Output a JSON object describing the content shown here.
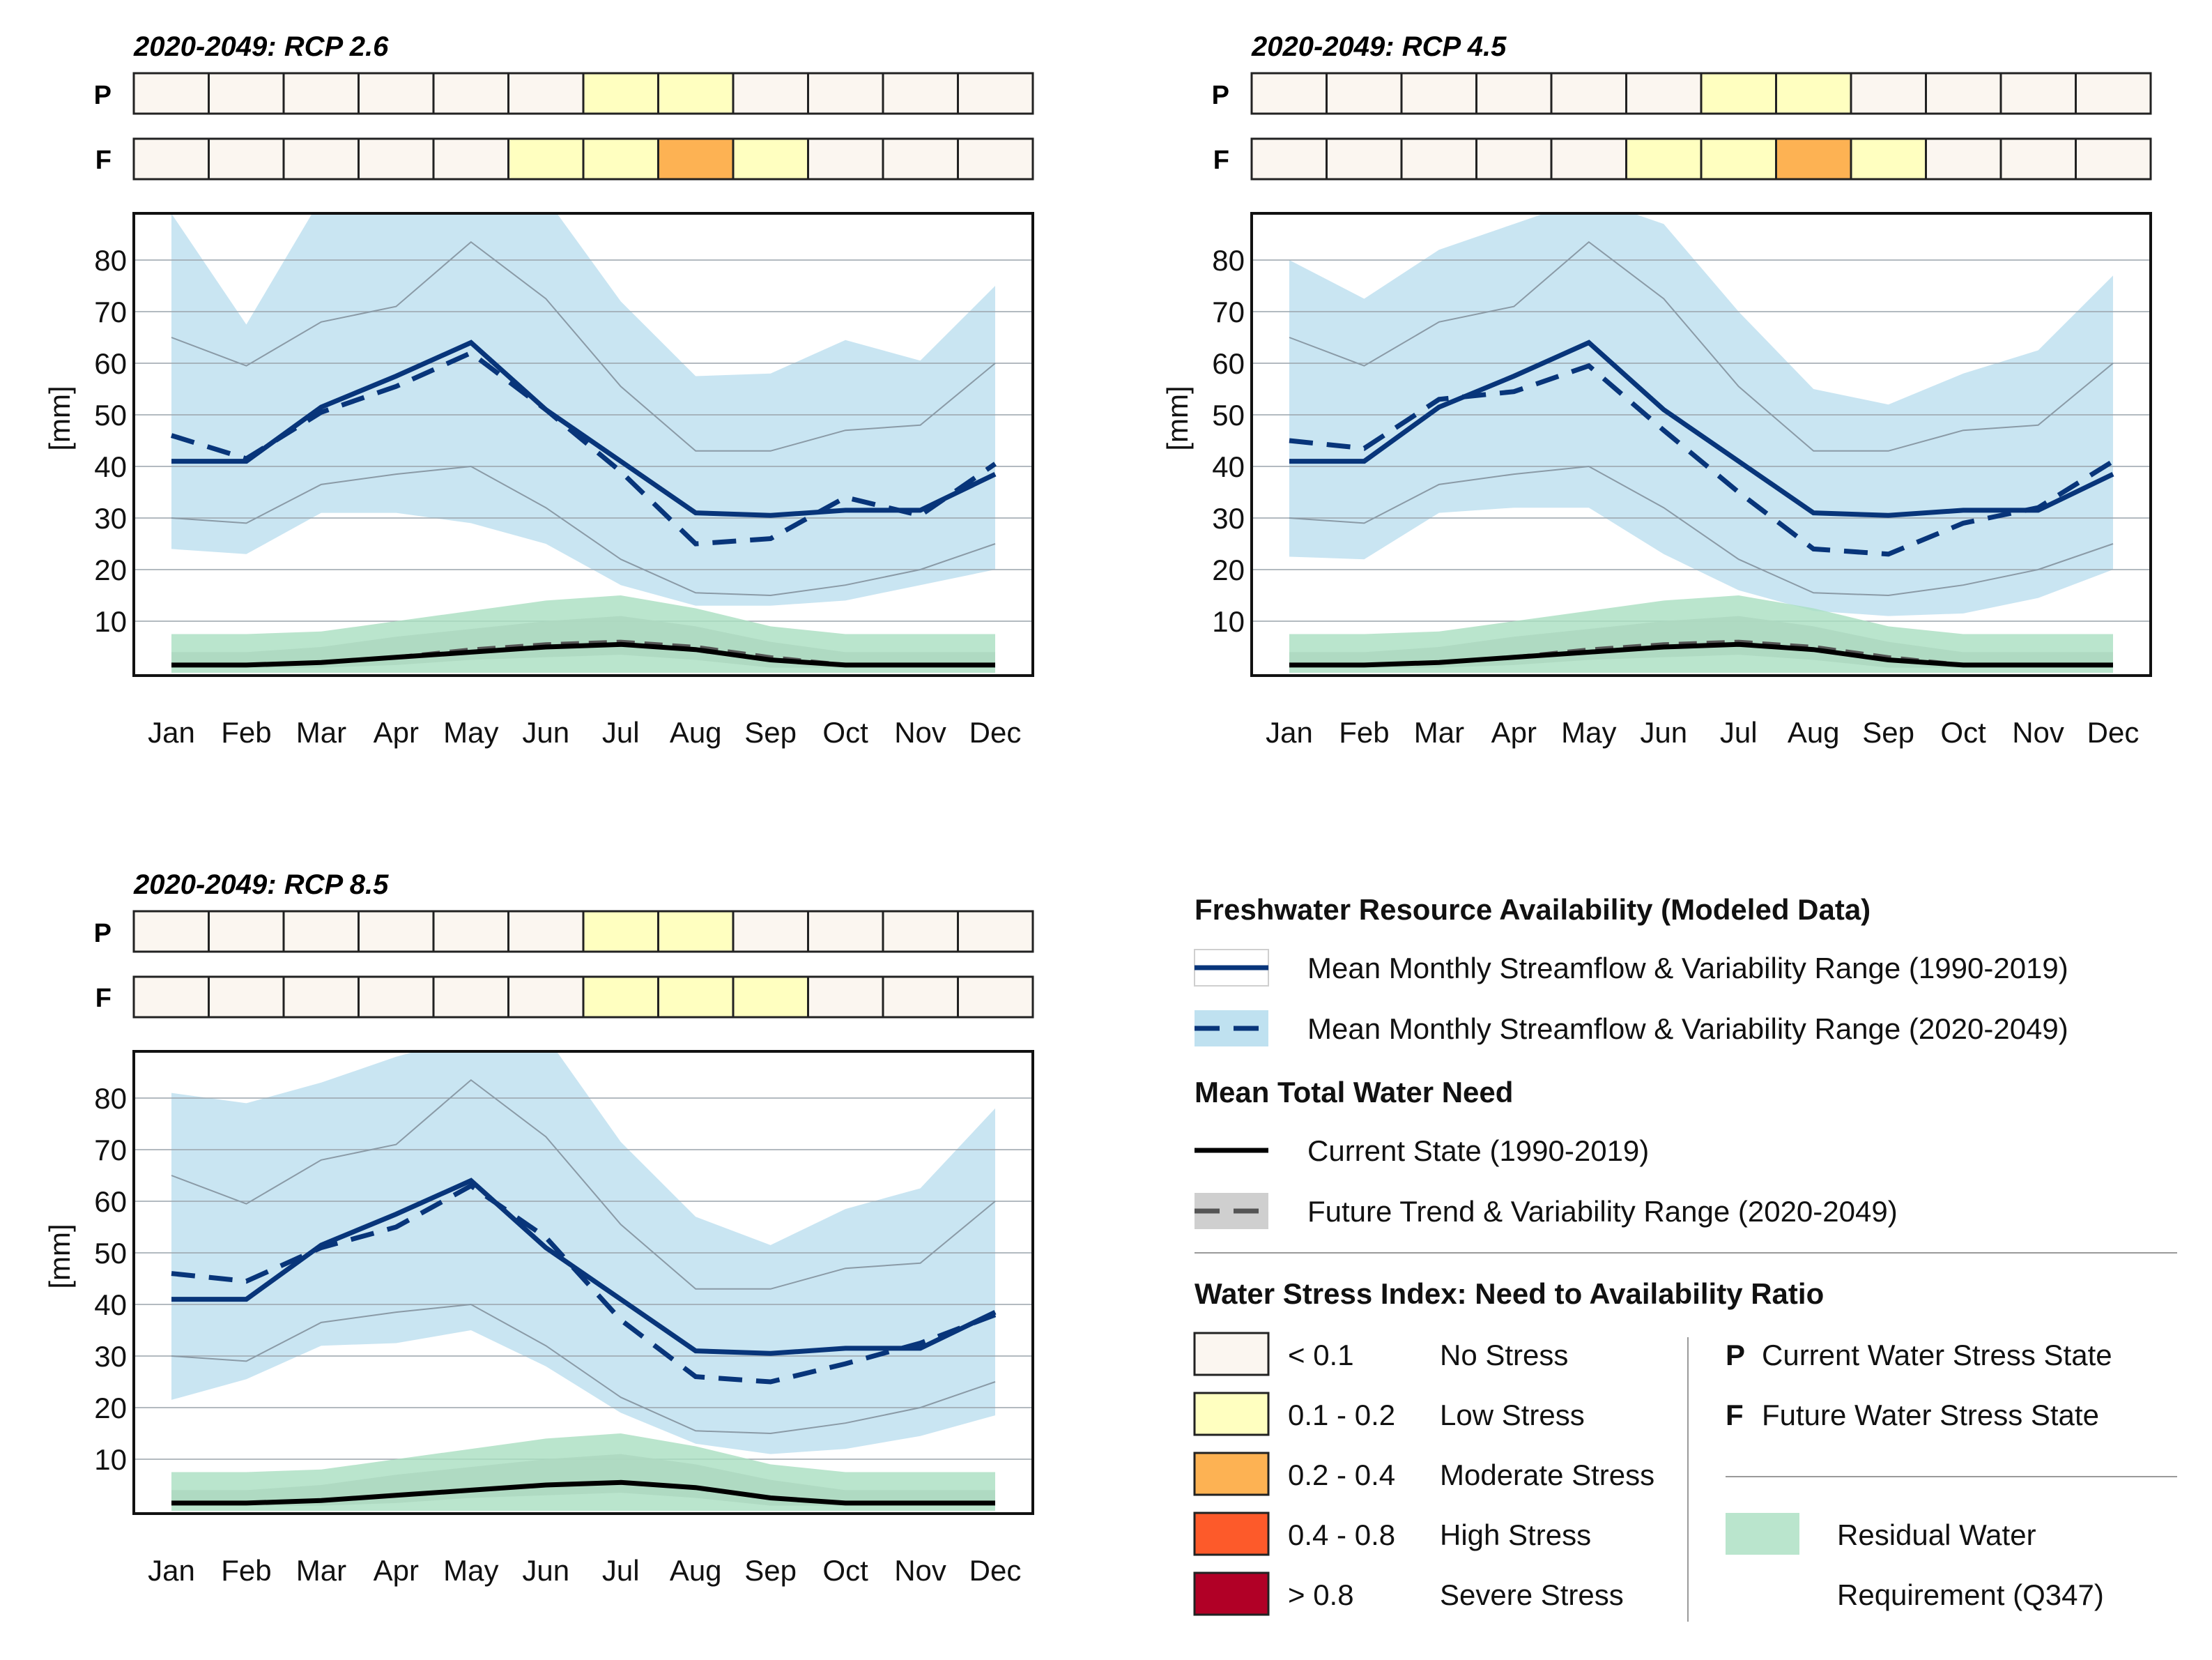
{
  "months": [
    "Jan",
    "Feb",
    "Mar",
    "Apr",
    "May",
    "Jun",
    "Jul",
    "Aug",
    "Sep",
    "Oct",
    "Nov",
    "Dec"
  ],
  "stress_colors": {
    "none": "#fbf6f0",
    "low": "#ffffc0",
    "moderate": "#fdb253",
    "high": "#fd5a2a",
    "severe": "#b10026"
  },
  "colors": {
    "streamflow": "#08357a",
    "streamflow_band": "#bfe1f0",
    "need_band": "#bdbdbd",
    "residual": "#a9dfc0"
  },
  "chart_data": [
    {
      "type": "line",
      "title": "2020-2049: RCP 2.6",
      "ylabel": "[mm]",
      "ylim": [
        0,
        90
      ],
      "yticks": [
        10,
        20,
        30,
        40,
        50,
        60,
        70,
        80
      ],
      "stress_rows": {
        "P": [
          "none",
          "none",
          "none",
          "none",
          "none",
          "none",
          "low",
          "low",
          "none",
          "none",
          "none",
          "none"
        ],
        "F": [
          "none",
          "none",
          "none",
          "none",
          "none",
          "low",
          "low",
          "moderate",
          "low",
          "none",
          "none",
          "none"
        ]
      },
      "series": [
        {
          "name": "Mean Monthly Streamflow (1990-2019)",
          "values": [
            41,
            41,
            51.5,
            57.5,
            64,
            51,
            41,
            31,
            30.5,
            31.5,
            31.5,
            38.5
          ]
        },
        {
          "name": "Mean Monthly Streamflow (2020-2049)",
          "values": [
            46,
            41.5,
            50.5,
            55.5,
            62,
            51,
            39,
            25,
            26,
            34,
            30.5,
            40.5
          ]
        },
        {
          "name": "Current State (1990-2019)",
          "values": [
            1.5,
            1.5,
            2,
            3,
            4,
            5,
            5.5,
            4.5,
            2.5,
            1.5,
            1.5,
            1.5
          ]
        },
        {
          "name": "Future Trend (2020-2049)",
          "values": [
            1.5,
            1.5,
            2,
            3,
            4.5,
            5.5,
            6,
            5,
            3,
            1.5,
            1.5,
            1.5
          ]
        }
      ],
      "streamflow_range_future": {
        "upper": [
          89,
          67.5,
          92,
          92,
          92,
          92,
          72,
          57.5,
          58,
          64.5,
          60.5,
          75
        ],
        "lower": [
          24,
          23,
          31,
          31,
          29,
          25,
          17,
          13,
          13,
          14,
          17,
          20
        ]
      },
      "streamflow_range_current": {
        "upper": [
          65,
          59.5,
          68,
          71,
          83.5,
          72.5,
          55.5,
          43,
          43,
          47,
          48,
          60
        ],
        "lower": [
          30,
          29,
          36.5,
          38.5,
          40,
          32,
          22,
          15.5,
          15,
          17,
          20,
          25
        ]
      },
      "need_range_future": {
        "upper": [
          4,
          4,
          5,
          7,
          8.5,
          10,
          11,
          9,
          6,
          4,
          4,
          4
        ],
        "lower": [
          1,
          1,
          1,
          1.5,
          2.5,
          3,
          3.5,
          2.5,
          1,
          1,
          1,
          1
        ]
      },
      "residual_water": {
        "upper": [
          7.5,
          7.5,
          8,
          10,
          12,
          14,
          15,
          12.5,
          9,
          7.5,
          7.5,
          7.5
        ],
        "lower": [
          0,
          0,
          0,
          0,
          0,
          0,
          0,
          0,
          0,
          0,
          0,
          0
        ]
      }
    },
    {
      "type": "line",
      "title": "2020-2049: RCP 4.5",
      "ylabel": "[mm]",
      "ylim": [
        0,
        90
      ],
      "yticks": [
        10,
        20,
        30,
        40,
        50,
        60,
        70,
        80
      ],
      "stress_rows": {
        "P": [
          "none",
          "none",
          "none",
          "none",
          "none",
          "none",
          "low",
          "low",
          "none",
          "none",
          "none",
          "none"
        ],
        "F": [
          "none",
          "none",
          "none",
          "none",
          "none",
          "low",
          "low",
          "moderate",
          "low",
          "none",
          "none",
          "none"
        ]
      },
      "series": [
        {
          "name": "Mean Monthly Streamflow (1990-2019)",
          "values": [
            41,
            41,
            51.5,
            57.5,
            64,
            51,
            41,
            31,
            30.5,
            31.5,
            31.5,
            38.5
          ]
        },
        {
          "name": "Mean Monthly Streamflow (2020-2049)",
          "values": [
            45,
            43.5,
            53,
            54.5,
            59.5,
            47,
            35,
            24,
            23,
            29,
            32,
            41
          ]
        },
        {
          "name": "Current State (1990-2019)",
          "values": [
            1.5,
            1.5,
            2,
            3,
            4,
            5,
            5.5,
            4.5,
            2.5,
            1.5,
            1.5,
            1.5
          ]
        },
        {
          "name": "Future Trend (2020-2049)",
          "values": [
            1.5,
            1.5,
            2,
            3,
            4.5,
            5.5,
            6,
            5,
            3,
            1.5,
            1.5,
            1.5
          ]
        }
      ],
      "streamflow_range_future": {
        "upper": [
          80,
          72.5,
          82,
          87,
          92,
          87,
          70,
          55,
          52,
          58,
          62.5,
          77
        ],
        "lower": [
          22.5,
          22,
          31,
          32,
          32,
          23,
          16,
          12,
          11,
          11.5,
          14.5,
          20
        ]
      },
      "streamflow_range_current": {
        "upper": [
          65,
          59.5,
          68,
          71,
          83.5,
          72.5,
          55.5,
          43,
          43,
          47,
          48,
          60
        ],
        "lower": [
          30,
          29,
          36.5,
          38.5,
          40,
          32,
          22,
          15.5,
          15,
          17,
          20,
          25
        ]
      },
      "need_range_future": {
        "upper": [
          4,
          4,
          5,
          7,
          8.5,
          10,
          11,
          9,
          6,
          4,
          4,
          4
        ],
        "lower": [
          1,
          1,
          1,
          1.5,
          2.5,
          3,
          3.5,
          2.5,
          1,
          1,
          1,
          1
        ]
      },
      "residual_water": {
        "upper": [
          7.5,
          7.5,
          8,
          10,
          12,
          14,
          15,
          12.5,
          9,
          7.5,
          7.5,
          7.5
        ],
        "lower": [
          0,
          0,
          0,
          0,
          0,
          0,
          0,
          0,
          0,
          0,
          0,
          0
        ]
      }
    },
    {
      "type": "line",
      "title": "2020-2049: RCP 8.5",
      "ylabel": "[mm]",
      "ylim": [
        0,
        90
      ],
      "yticks": [
        10,
        20,
        30,
        40,
        50,
        60,
        70,
        80
      ],
      "stress_rows": {
        "P": [
          "none",
          "none",
          "none",
          "none",
          "none",
          "none",
          "low",
          "low",
          "none",
          "none",
          "none",
          "none"
        ],
        "F": [
          "none",
          "none",
          "none",
          "none",
          "none",
          "none",
          "low",
          "low",
          "low",
          "none",
          "none",
          "none"
        ]
      },
      "series": [
        {
          "name": "Mean Monthly Streamflow (1990-2019)",
          "values": [
            41,
            41,
            51.5,
            57.5,
            64,
            51,
            41,
            31,
            30.5,
            31.5,
            31.5,
            38.5
          ]
        },
        {
          "name": "Mean Monthly Streamflow (2020-2049)",
          "values": [
            46,
            44.5,
            51,
            55,
            63,
            53,
            37,
            26,
            25,
            28.5,
            32.5,
            38
          ]
        },
        {
          "name": "Current State (1990-2019)",
          "values": [
            1.5,
            1.5,
            2,
            3,
            4,
            5,
            5.5,
            4.5,
            2.5,
            1.5,
            1.5,
            1.5
          ]
        },
        {
          "name": "Future Trend (2020-2049)",
          "values": [
            1.5,
            1.5,
            2,
            3,
            4,
            5,
            5.5,
            4.5,
            2.5,
            1.5,
            1.5,
            1.5
          ]
        }
      ],
      "streamflow_range_future": {
        "upper": [
          81,
          79,
          83,
          88,
          92,
          92,
          71.5,
          57,
          51.5,
          58.5,
          62.5,
          78
        ],
        "lower": [
          21.5,
          25.5,
          32,
          32.5,
          35,
          28,
          19,
          13,
          11,
          12,
          14.5,
          18.5
        ]
      },
      "streamflow_range_current": {
        "upper": [
          65,
          59.5,
          68,
          71,
          83.5,
          72.5,
          55.5,
          43,
          43,
          47,
          48,
          60
        ],
        "lower": [
          30,
          29,
          36.5,
          38.5,
          40,
          32,
          22,
          15.5,
          15,
          17,
          20,
          25
        ]
      },
      "need_range_future": {
        "upper": [
          4,
          4,
          5,
          7,
          8.5,
          10,
          11,
          9,
          6,
          4,
          4,
          4
        ],
        "lower": [
          1,
          1,
          1,
          1.5,
          2.5,
          3,
          3.5,
          2.5,
          1,
          1,
          1,
          1
        ]
      },
      "residual_water": {
        "upper": [
          7.5,
          7.5,
          8,
          10,
          12,
          14,
          15,
          12.5,
          9,
          7.5,
          7.5,
          7.5
        ],
        "lower": [
          0,
          0,
          0,
          0,
          0,
          0,
          0,
          0,
          0,
          0,
          0,
          0
        ]
      }
    }
  ],
  "legend": {
    "section1_title": "Freshwater Resource Availability (Modeled Data)",
    "streamflow_current": "Mean Monthly Streamflow & Variability Range (1990-2019)",
    "streamflow_future": "Mean Monthly Streamflow & Variability Range (2020-2049)",
    "section2_title": "Mean Total Water Need",
    "need_current": "Current State (1990-2019)",
    "need_future": "Future Trend & Variability Range (2020-2049)",
    "section3_title": "Water Stress Index: Need to Availability Ratio",
    "stress_items": [
      {
        "range": "< 0.1",
        "label": "No Stress",
        "color": "#fbf6f0"
      },
      {
        "range": "0.1 - 0.2",
        "label": "Low Stress",
        "color": "#ffffc0"
      },
      {
        "range": "0.2 - 0.4",
        "label": "Moderate Stress",
        "color": "#fdb253"
      },
      {
        "range": "0.4 - 0.8",
        "label": "High Stress",
        "color": "#fd5a2a"
      },
      {
        "range": "> 0.8",
        "label": "Severe Stress",
        "color": "#b10026"
      }
    ],
    "p_letter": "P",
    "p_label": "Current Water Stress State",
    "f_letter": "F",
    "f_label": "Future Water Stress State",
    "residual_line1": "Residual Water",
    "residual_line2": "Requirement (Q347)"
  }
}
